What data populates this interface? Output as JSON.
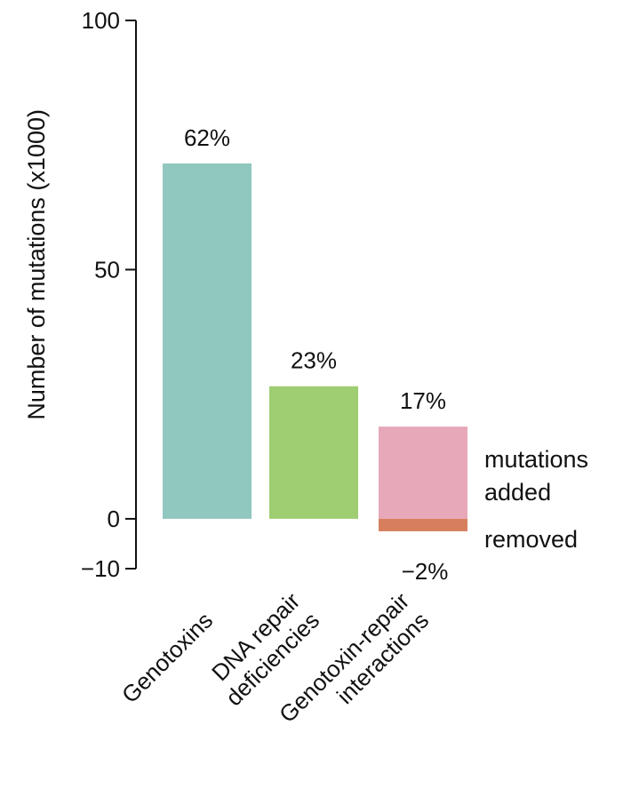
{
  "chart_data": {
    "type": "bar",
    "title": "",
    "xlabel": "",
    "ylabel": "Number of mutations (x1000)",
    "ylim": [
      -10,
      100
    ],
    "yticks": [
      -10,
      0,
      50,
      100
    ],
    "ytick_labels": [
      "−10",
      "0",
      "50",
      "100"
    ],
    "grid": false,
    "legend": "none",
    "categories": [
      {
        "lines": [
          "Genotoxins"
        ]
      },
      {
        "lines": [
          "DNA repair",
          "deficiencies"
        ]
      },
      {
        "lines": [
          "Genotoxin-repair",
          "interactions"
        ]
      }
    ],
    "bars": [
      {
        "category_index": 0,
        "value": 71.3,
        "color": "#90c7be",
        "label": "62%"
      },
      {
        "category_index": 1,
        "value": 26.6,
        "color": "#9fcd72",
        "label": "23%"
      },
      {
        "category_index": 2,
        "value": 18.5,
        "color": "#e7a8b9",
        "label": "17%"
      },
      {
        "category_index": 2,
        "value": -2.5,
        "color": "#d77f5d",
        "label": "−2%"
      }
    ],
    "annotations": {
      "added_line1": "mutations",
      "added_line2": "added",
      "removed": "removed"
    }
  }
}
